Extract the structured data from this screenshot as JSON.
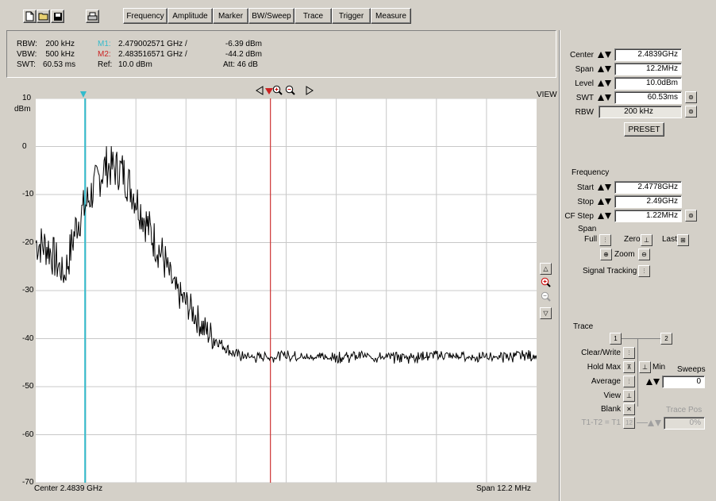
{
  "toolbar": {
    "icons": [
      "new-file-icon",
      "open-folder-icon",
      "save-disk-icon",
      "print-icon"
    ],
    "menus": [
      "Frequency",
      "Amplitude",
      "Marker",
      "BW/Sweep",
      "Trace",
      "Trigger",
      "Measure"
    ]
  },
  "info": {
    "rbw_label": "RBW:",
    "rbw_value": "200 kHz",
    "vbw_label": "VBW:",
    "vbw_value": "500 kHz",
    "swt_label": "SWT:",
    "swt_value": "60.53 ms",
    "m1_label": "M1:",
    "m1_freq": "2.479002571 GHz /",
    "m1_level": "-6.39 dBm",
    "m2_label": "M2:",
    "m2_freq": "2.483516571 GHz /",
    "m2_level": "-44.2 dBm",
    "ref_label": "Ref:",
    "ref_value": "10.0 dBm",
    "att_text": "Att:  46 dB",
    "m1_color": "#33bbcc",
    "m2_color": "#cc2222"
  },
  "plot": {
    "view_label": "VIEW",
    "center_text": "Center 2.4839 GHz",
    "span_text": "Span 12.2 MHz",
    "unit": "dBm",
    "colors": {
      "m1_line": "#33bbcc",
      "m2_line": "#cc3333",
      "trace": "#000000",
      "grid": "#c8c8c8"
    }
  },
  "chart_data": {
    "type": "line",
    "ylabel": "dBm",
    "ylim": [
      -70,
      10
    ],
    "yticks": [
      10,
      0,
      -10,
      -20,
      -30,
      -40,
      -50,
      -60,
      -70
    ],
    "xlim": [
      2.4778,
      2.49
    ],
    "x_unit": "GHz",
    "center_ghz": 2.4839,
    "span_mhz": 12.2,
    "markers": [
      {
        "name": "M1",
        "x_ghz": 2.479002571,
        "level_dbm": -6.39
      },
      {
        "name": "M2",
        "x_ghz": 2.483516571,
        "level_dbm": -44.2
      }
    ],
    "series": [
      {
        "x": [
          2.4778,
          2.4781,
          2.4785,
          2.4788,
          2.4792,
          2.4795,
          2.4799,
          2.4802,
          2.4806,
          2.4809,
          2.4812,
          2.4816,
          2.4819,
          2.4823,
          2.4826,
          2.4829,
          2.4833,
          2.4836,
          2.484,
          2.4843,
          2.4846,
          2.485,
          2.4857,
          2.4863,
          2.487,
          2.4877,
          2.4884,
          2.4891,
          2.4898,
          2.49
        ],
        "values": [
          -20,
          -21,
          -27,
          -16,
          -9,
          -4,
          -5,
          -10,
          -18,
          -23,
          -30,
          -34,
          -38,
          -41,
          -43,
          -44,
          -44,
          -44,
          -43.5,
          -44,
          -44,
          -44,
          -43.8,
          -44,
          -44,
          -43.5,
          -44,
          -44,
          -43.5,
          -44
        ]
      }
    ]
  },
  "right": {
    "center_label": "Center",
    "center_value": "2.4839GHz",
    "span_label": "Span",
    "span_value": "12.2MHz",
    "level_label": "Level",
    "level_value": "10.0dBm",
    "swt_label": "SWT",
    "swt_value": "60.53ms",
    "rbw_label": "RBW",
    "rbw_value": "200 kHz",
    "preset_label": "PRESET",
    "freq_title": "Frequency",
    "start_label": "Start",
    "start_value": "2.4778GHz",
    "stop_label": "Stop",
    "stop_value": "2.49GHz",
    "cfstep_label": "CF Step",
    "cfstep_value": "1.22MHz",
    "span_title": "Span",
    "full_label": "Full",
    "zero_label": "Zero",
    "last_label": "Last",
    "zoom_label": "Zoom",
    "signal_tracking_label": "Signal Tracking",
    "trace_title": "Trace",
    "clear_write_label": "Clear/Write",
    "hold_max_label": "Hold Max",
    "min_label": "Min",
    "sweeps_label": "Sweeps",
    "average_label": "Average",
    "average_value": "0",
    "view_label": "View",
    "blank_label": "Blank",
    "tracepos_label": "Trace Pos",
    "t1t2_label": "T1-T2 = T1",
    "tracepos_value": "0%"
  }
}
